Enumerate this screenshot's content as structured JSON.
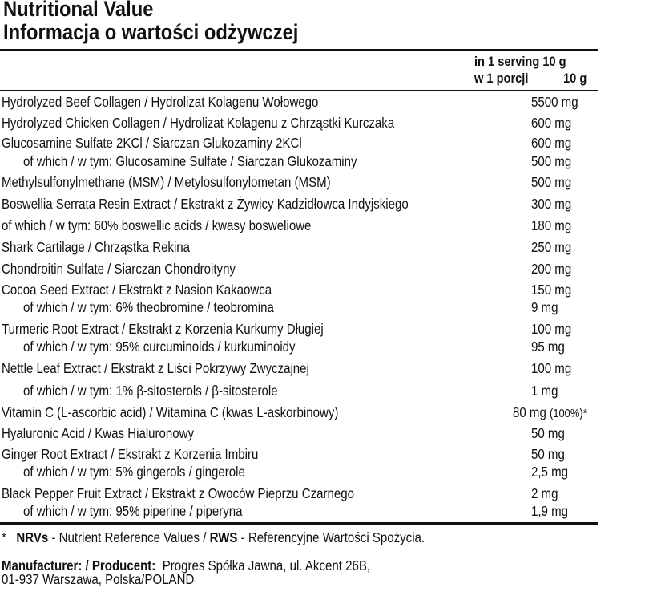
{
  "title_en": "Nutritional Value",
  "title_pl": "Informacja o wartości odżywczej",
  "header": {
    "serving_en": "in 1 serving 10 g",
    "serving_pl_label": "w 1 porcji",
    "serving_pl_value": "10 g"
  },
  "rows": [
    {
      "name": "Hydrolyzed Beef Collagen / Hydrolizat Kolagenu Wołowego",
      "value": "5500 mg"
    },
    {
      "name": "Hydrolyzed Chicken Collagen / Hydrolizat Kolagenu z Chrząstki Kurczaka",
      "value": "600 mg"
    },
    {
      "name": "Glucosamine Sulfate 2KCl / Siarczan Glukozaminy 2KCl",
      "value": "600 mg"
    },
    {
      "name": "of which / w tym: Glucosamine Sulfate / Siarczan Glukozaminy",
      "value": "500 mg"
    },
    {
      "name": "Methylsulfonylmethane (MSM) / Metylosulfonylometan (MSM)",
      "value": "500 mg"
    },
    {
      "name": "Boswellia Serrata Resin Extract / Ekstrakt z Żywicy Kadzidłowca Indyjskiego",
      "value": "300 mg"
    },
    {
      "name": "of which / w tym: 60% boswellic acids / kwasy bosweliowe",
      "value": "180 mg"
    },
    {
      "name": "Shark Cartilage / Chrząstka Rekina",
      "value": "250 mg"
    },
    {
      "name": "Chondroitin Sulfate / Siarczan Chondroityny",
      "value": "200 mg"
    },
    {
      "name": "Cocoa Seed Extract / Ekstrakt z Nasion Kakaowca",
      "value": "150 mg"
    },
    {
      "name": "of which / w tym: 6% theobromine / teobromina",
      "value": "9 mg"
    },
    {
      "name": "Turmeric Root Extract / Ekstrakt z Korzenia Kurkumy Długiej",
      "value": "100 mg"
    },
    {
      "name": "of which / w tym: 95% curcuminoids / kurkuminoidy",
      "value": "95 mg"
    },
    {
      "name": "Nettle Leaf Extract / Ekstrakt z Liści Pokrzywy Zwyczajnej",
      "value": "100 mg"
    },
    {
      "name": "of which / w tym: 1% β-sitosterols / β-sitosterole",
      "value": "1 mg"
    },
    {
      "name": "Vitamin C (L-ascorbic acid) / Witamina C (kwas L-askorbinowy)",
      "value": "80 mg",
      "nrv": "(100%)*"
    },
    {
      "name": "Hyaluronic Acid / Kwas Hialuronowy",
      "value": "50 mg"
    },
    {
      "name": "Ginger Root Extract / Ekstrakt z Korzenia Imbiru",
      "value": "50 mg"
    },
    {
      "name": "of which / w tym: 5% gingerols / gingerole",
      "value": "2,5 mg"
    },
    {
      "name": "Black Pepper Fruit Extract / Ekstrakt z Owoców Pieprzu Czarnego",
      "value": "2 mg"
    },
    {
      "name": "of which / w tym: 95% piperine / piperyna",
      "value": "1,9 mg"
    }
  ],
  "footnote": {
    "star": "*",
    "nrv_abbr": "NRVs",
    "nrv_text": " - Nutrient Reference Values / ",
    "rws_abbr": "RWS",
    "rws_text": " - Referencyjne Wartości Spożycia."
  },
  "manufacturer": {
    "label": "Manufacturer: / Producent:",
    "line1": "Progres Spółka Jawna, ul. Akcent 26B,",
    "line2": "01-937 Warszawa, Polska/POLAND"
  }
}
